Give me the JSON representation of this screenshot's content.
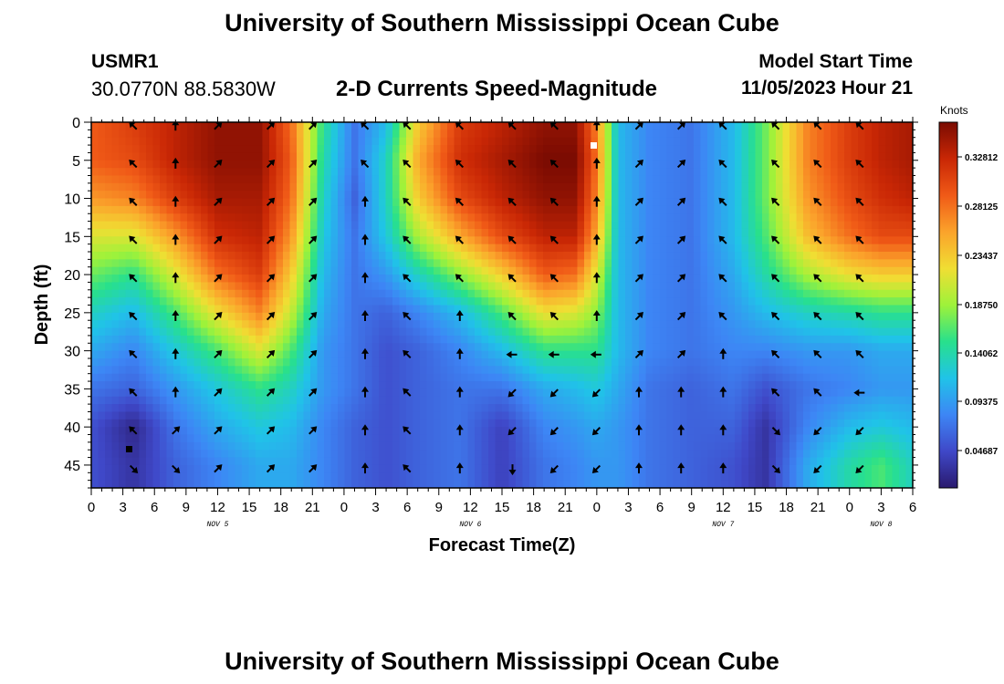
{
  "header": {
    "title": "University of Southern Mississippi Ocean Cube",
    "station_id": "USMR1",
    "coords": "30.0770N  88.5830W",
    "chart_title": "2-D Currents Speed-Magnitude",
    "start_label": "Model Start Time",
    "start_value": "11/05/2023 Hour 21"
  },
  "footer": {
    "title": "University of Southern Mississippi Ocean Cube"
  },
  "chart_data": {
    "type": "heatmap",
    "title": "2-D Currents Speed-Magnitude",
    "xlabel": "Forecast Time(Z)",
    "ylabel": "Depth (ft)",
    "x_tick_labels": [
      "0",
      "3",
      "6",
      "9",
      "12",
      "15",
      "18",
      "21",
      "0",
      "3",
      "6",
      "9",
      "12",
      "15",
      "18",
      "21",
      "0",
      "3",
      "6",
      "9",
      "12",
      "15",
      "18",
      "21",
      "0",
      "3",
      "6"
    ],
    "x_range_hours": [
      0,
      78
    ],
    "day_labels": [
      {
        "label": "NOV 5",
        "hour": 12
      },
      {
        "label": "NOV 6",
        "hour": 36
      },
      {
        "label": "NOV 7",
        "hour": 60
      },
      {
        "label": "NOV 8",
        "hour": 75
      }
    ],
    "y_ticks": [
      0,
      5,
      10,
      15,
      20,
      25,
      30,
      35,
      40,
      45
    ],
    "y_range_ft": [
      0,
      48
    ],
    "colorbar": {
      "label": "Knots",
      "ticks": [
        "0.32812",
        "0.28125",
        "0.23437",
        "0.18750",
        "0.14062",
        "0.09375",
        "0.04687"
      ],
      "range": [
        0.0,
        0.35
      ]
    },
    "colors": {
      "scale": [
        "#2a1a6e",
        "#3f48c8",
        "#3d86f5",
        "#20c3e8",
        "#28e08c",
        "#9ef23a",
        "#f0de33",
        "#fba32b",
        "#f05a17",
        "#c92705",
        "#7a0b02"
      ]
    },
    "speed_profile": [
      {
        "hour": 0,
        "speed": [
          0.28,
          0.28,
          0.25,
          0.2,
          0.16,
          0.12,
          0.09,
          0.06,
          0.04,
          0.04
        ]
      },
      {
        "hour": 4,
        "speed": [
          0.3,
          0.29,
          0.26,
          0.2,
          0.14,
          0.1,
          0.07,
          0.05,
          0.01,
          0.02
        ]
      },
      {
        "hour": 8,
        "speed": [
          0.32,
          0.32,
          0.3,
          0.25,
          0.2,
          0.15,
          0.11,
          0.08,
          0.06,
          0.05
        ]
      },
      {
        "hour": 12,
        "speed": [
          0.34,
          0.34,
          0.33,
          0.31,
          0.27,
          0.21,
          0.15,
          0.11,
          0.09,
          0.07
        ]
      },
      {
        "hour": 16,
        "speed": [
          0.34,
          0.34,
          0.33,
          0.32,
          0.3,
          0.26,
          0.2,
          0.14,
          0.11,
          0.09
        ]
      },
      {
        "hour": 19,
        "speed": [
          0.27,
          0.28,
          0.27,
          0.25,
          0.22,
          0.19,
          0.15,
          0.12,
          0.1,
          0.09
        ]
      },
      {
        "hour": 22,
        "speed": [
          0.14,
          0.13,
          0.12,
          0.11,
          0.1,
          0.09,
          0.08,
          0.08,
          0.07,
          0.07
        ]
      },
      {
        "hour": 25,
        "speed": [
          0.06,
          0.06,
          0.05,
          0.06,
          0.06,
          0.06,
          0.06,
          0.06,
          0.05,
          0.05
        ]
      },
      {
        "hour": 28,
        "speed": [
          0.1,
          0.12,
          0.12,
          0.11,
          0.08,
          0.05,
          0.04,
          0.04,
          0.04,
          0.04
        ]
      },
      {
        "hour": 31,
        "speed": [
          0.22,
          0.24,
          0.22,
          0.18,
          0.12,
          0.07,
          0.05,
          0.05,
          0.05,
          0.05
        ]
      },
      {
        "hour": 35,
        "speed": [
          0.3,
          0.31,
          0.29,
          0.24,
          0.17,
          0.1,
          0.07,
          0.06,
          0.06,
          0.06
        ]
      },
      {
        "hour": 39,
        "speed": [
          0.32,
          0.33,
          0.32,
          0.29,
          0.22,
          0.15,
          0.1,
          0.06,
          0.03,
          0.03
        ]
      },
      {
        "hour": 43,
        "speed": [
          0.34,
          0.35,
          0.34,
          0.32,
          0.28,
          0.21,
          0.14,
          0.09,
          0.07,
          0.06
        ]
      },
      {
        "hour": 46,
        "speed": [
          0.34,
          0.35,
          0.34,
          0.32,
          0.27,
          0.2,
          0.14,
          0.1,
          0.08,
          0.07
        ]
      },
      {
        "hour": 48,
        "speed": [
          0.26,
          0.27,
          0.26,
          0.24,
          0.2,
          0.17,
          0.14,
          0.11,
          0.09,
          0.08
        ]
      },
      {
        "hour": 50,
        "speed": [
          0.1,
          0.1,
          0.1,
          0.1,
          0.1,
          0.1,
          0.1,
          0.09,
          0.08,
          0.08
        ]
      },
      {
        "hour": 53,
        "speed": [
          0.07,
          0.07,
          0.07,
          0.07,
          0.07,
          0.07,
          0.07,
          0.06,
          0.06,
          0.06
        ]
      },
      {
        "hour": 57,
        "speed": [
          0.06,
          0.06,
          0.06,
          0.06,
          0.06,
          0.06,
          0.06,
          0.05,
          0.05,
          0.05
        ]
      },
      {
        "hour": 61,
        "speed": [
          0.1,
          0.1,
          0.1,
          0.1,
          0.09,
          0.08,
          0.07,
          0.06,
          0.05,
          0.04
        ]
      },
      {
        "hour": 64,
        "speed": [
          0.16,
          0.16,
          0.16,
          0.15,
          0.13,
          0.1,
          0.07,
          0.04,
          0.02,
          0.02
        ]
      },
      {
        "hour": 68,
        "speed": [
          0.26,
          0.26,
          0.25,
          0.23,
          0.18,
          0.12,
          0.08,
          0.06,
          0.07,
          0.09
        ]
      },
      {
        "hour": 72,
        "speed": [
          0.3,
          0.3,
          0.29,
          0.27,
          0.21,
          0.13,
          0.08,
          0.07,
          0.1,
          0.13
        ]
      },
      {
        "hour": 75,
        "speed": [
          0.32,
          0.32,
          0.31,
          0.29,
          0.22,
          0.14,
          0.09,
          0.08,
          0.11,
          0.15
        ]
      },
      {
        "hour": 78,
        "speed": [
          0.33,
          0.33,
          0.32,
          0.29,
          0.22,
          0.14,
          0.09,
          0.08,
          0.1,
          0.12
        ]
      }
    ],
    "vector_columns": [
      {
        "hour": 4,
        "dir": [
          225,
          225,
          225,
          225,
          225,
          225,
          225,
          225,
          225,
          45
        ]
      },
      {
        "hour": 8,
        "dir": [
          270,
          270,
          270,
          270,
          270,
          270,
          270,
          270,
          315,
          45
        ]
      },
      {
        "hour": 12,
        "dir": [
          315,
          315,
          315,
          315,
          315,
          315,
          315,
          315,
          315,
          315
        ]
      },
      {
        "hour": 17,
        "dir": [
          315,
          315,
          315,
          315,
          315,
          315,
          315,
          315,
          315,
          315
        ]
      },
      {
        "hour": 21,
        "dir": [
          315,
          315,
          315,
          315,
          315,
          315,
          315,
          315,
          315,
          315
        ]
      },
      {
        "hour": 26,
        "dir": [
          225,
          225,
          270,
          270,
          270,
          270,
          270,
          270,
          270,
          270
        ]
      },
      {
        "hour": 30,
        "dir": [
          225,
          225,
          225,
          225,
          225,
          225,
          225,
          225,
          225,
          225
        ]
      },
      {
        "hour": 35,
        "dir": [
          225,
          225,
          225,
          225,
          225,
          270,
          270,
          270,
          270,
          270
        ]
      },
      {
        "hour": 40,
        "dir": [
          225,
          225,
          225,
          225,
          225,
          225,
          180,
          135,
          135,
          90
        ]
      },
      {
        "hour": 44,
        "dir": [
          225,
          225,
          225,
          225,
          225,
          225,
          180,
          135,
          135,
          135
        ]
      },
      {
        "hour": 48,
        "dir": [
          270,
          270,
          270,
          270,
          270,
          270,
          180,
          135,
          135,
          135
        ]
      },
      {
        "hour": 52,
        "dir": [
          315,
          315,
          315,
          315,
          315,
          315,
          315,
          270,
          270,
          270
        ]
      },
      {
        "hour": 56,
        "dir": [
          315,
          315,
          315,
          315,
          315,
          315,
          315,
          270,
          270,
          270
        ]
      },
      {
        "hour": 60,
        "dir": [
          225,
          225,
          225,
          225,
          225,
          225,
          270,
          270,
          270,
          270
        ]
      },
      {
        "hour": 65,
        "dir": [
          225,
          225,
          225,
          225,
          225,
          225,
          225,
          225,
          45,
          45
        ]
      },
      {
        "hour": 69,
        "dir": [
          225,
          225,
          225,
          225,
          225,
          225,
          225,
          225,
          135,
          135
        ]
      },
      {
        "hour": 73,
        "dir": [
          225,
          225,
          225,
          225,
          225,
          225,
          225,
          180,
          135,
          135
        ]
      }
    ]
  }
}
